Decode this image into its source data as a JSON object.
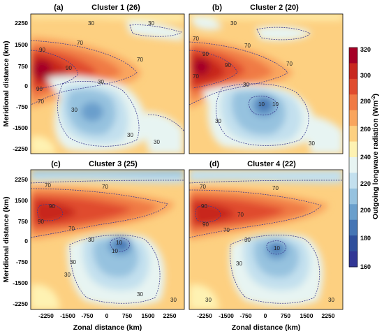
{
  "panels": [
    {
      "label": "(a)",
      "title": "Cluster 1 (26)"
    },
    {
      "label": "(b)",
      "title": "Cluster 2 (20)"
    },
    {
      "label": "(c)",
      "title": "Cluster 3 (25)"
    },
    {
      "label": "(d)",
      "title": "Cluster 4 (22)"
    }
  ],
  "axes": {
    "xlabel": "Zonal distance (km)",
    "ylabel": "Meridional distance (km)",
    "x_ticks": [
      "-2250",
      "-1500",
      "-750",
      "0",
      "750",
      "1500",
      "2250"
    ],
    "y_ticks": [
      "2250",
      "1500",
      "750",
      "0",
      "-750",
      "-1500",
      "-2250"
    ]
  },
  "colorbar": {
    "label": "Outgoing longwave radiation (Wm",
    "label_sup": "-2",
    "label_end": ")",
    "ticks": [
      "320",
      "300",
      "280",
      "260",
      "240",
      "220",
      "200",
      "180",
      "160"
    ],
    "colors": [
      "#a50026",
      "#c8281f",
      "#e04b2e",
      "#f07a45",
      "#f9a55e",
      "#fdd081",
      "#fef2b2",
      "#e7f4f2",
      "#c3e0ee",
      "#96c2df",
      "#6a9fcc",
      "#4575b4",
      "#2f4f9c",
      "#313695"
    ]
  },
  "contour_labels": {
    "v30": "30",
    "v70": "70",
    "v90": "90",
    "v10": "10"
  }
}
